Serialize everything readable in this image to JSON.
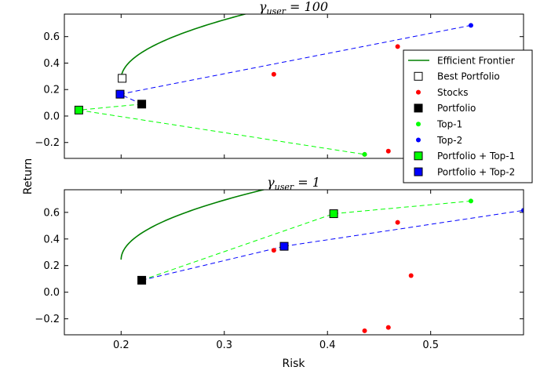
{
  "figure": {
    "xlabel": "Risk",
    "ylabel": "Return"
  },
  "legend": {
    "placement": "top-right of upper panel",
    "entries": [
      {
        "label": "Efficient Frontier",
        "marker": "line",
        "color": "#008000"
      },
      {
        "label": "Best Portfolio",
        "marker": "square",
        "color": "#ffffff"
      },
      {
        "label": "Stocks",
        "marker": "dot",
        "color": "#ff0000"
      },
      {
        "label": "Portfolio",
        "marker": "square",
        "color": "#000000"
      },
      {
        "label": "Top-1",
        "marker": "dot",
        "color": "#00ff00"
      },
      {
        "label": "Top-2",
        "marker": "dot",
        "color": "#0000ff"
      },
      {
        "label": "Portfolio + Top-1",
        "marker": "square",
        "color": "#00ff00"
      },
      {
        "label": "Portfolio + Top-2",
        "marker": "square",
        "color": "#0000ff"
      }
    ]
  },
  "chart_data": [
    {
      "type": "scatter",
      "title": "γuser = 100",
      "title_parts": {
        "base": "γ",
        "sub": "user",
        "rest": " = 100"
      },
      "xlim": [
        0.145,
        0.59
      ],
      "ylim": [
        -0.32,
        0.77
      ],
      "xticks": [
        0.2,
        0.3,
        0.4,
        0.5
      ],
      "show_x_ticklabels": false,
      "yticks": [
        -0.2,
        0.0,
        0.2,
        0.4,
        0.6
      ],
      "ytick_labels": [
        "−0.2",
        "0.0",
        "0.2",
        "0.4",
        "0.6"
      ],
      "frontier": {
        "x0": 0.2,
        "y0": 0.28,
        "y_end": 0.78,
        "coef": 0.5,
        "color": "#008000"
      },
      "stocks": [
        [
          0.348,
          0.315
        ],
        [
          0.468,
          0.525
        ],
        [
          0.436,
          -0.29
        ],
        [
          0.459,
          -0.265
        ]
      ],
      "top1": [
        0.436,
        -0.29
      ],
      "top2": [
        0.539,
        0.685
      ],
      "portfolio": [
        0.22,
        0.09
      ],
      "best_portfolio": [
        0.201,
        0.285
      ],
      "portfolio_top1": [
        0.159,
        0.045
      ],
      "portfolio_top2": [
        0.199,
        0.165
      ]
    },
    {
      "type": "scatter",
      "title": "γuser = 1",
      "title_parts": {
        "base": "γ",
        "sub": "user",
        "rest": " = 1"
      },
      "xlim": [
        0.145,
        0.59
      ],
      "ylim": [
        -0.32,
        0.77
      ],
      "xticks": [
        0.2,
        0.3,
        0.4,
        0.5
      ],
      "xtick_labels": [
        "0.2",
        "0.3",
        "0.4",
        "0.5"
      ],
      "show_x_ticklabels": true,
      "yticks": [
        -0.2,
        0.0,
        0.2,
        0.4,
        0.6
      ],
      "ytick_labels": [
        "−0.2",
        "0.0",
        "0.2",
        "0.4",
        "0.6"
      ],
      "frontier": {
        "x0": 0.2,
        "y0": 0.245,
        "y_end": 0.78,
        "coef": 0.5,
        "color": "#008000"
      },
      "stocks": [
        [
          0.348,
          0.315
        ],
        [
          0.468,
          0.525
        ],
        [
          0.481,
          0.125
        ],
        [
          0.436,
          -0.29
        ],
        [
          0.459,
          -0.265
        ]
      ],
      "top1": [
        0.539,
        0.685
      ],
      "top2": [
        0.59,
        0.615
      ],
      "portfolio": [
        0.22,
        0.09
      ],
      "portfolio_top1": [
        0.406,
        0.59
      ],
      "portfolio_top2": [
        0.358,
        0.345
      ]
    }
  ]
}
